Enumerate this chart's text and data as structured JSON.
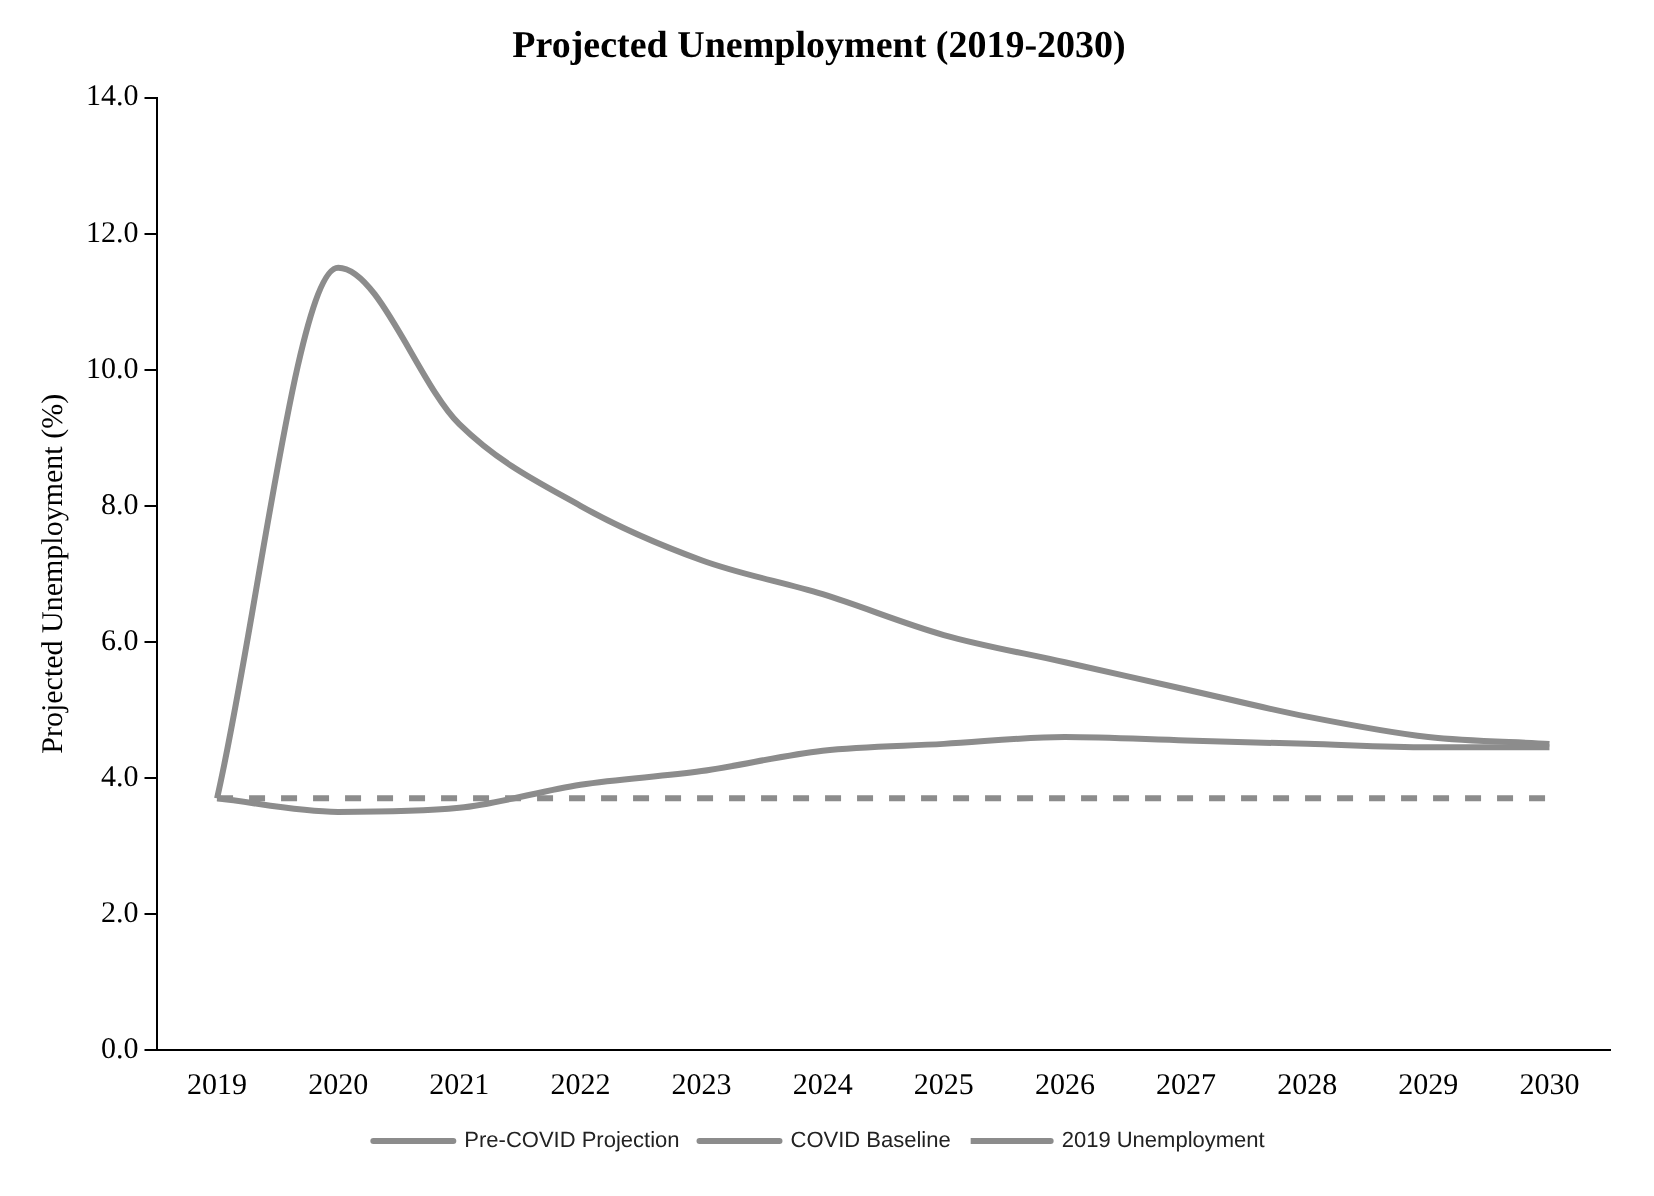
{
  "chart_data": {
    "type": "line",
    "title": "Projected Unemployment (2019-2030)",
    "ylabel": "Projected Unemployment (%)",
    "categories": [
      "2019",
      "2020",
      "2021",
      "2022",
      "2023",
      "2024",
      "2025",
      "2026",
      "2027",
      "2028",
      "2029",
      "2030"
    ],
    "series": [
      {
        "name": "Pre-COVID Projection",
        "color": "#8c8c8c",
        "line_style": "solid",
        "values": [
          3.7,
          3.5,
          3.56,
          3.9,
          4.1,
          4.4,
          4.5,
          4.6,
          4.55,
          4.5,
          4.45,
          4.45
        ]
      },
      {
        "name": "COVID Baseline",
        "color": "#8c8c8c",
        "line_style": "solid",
        "values": [
          3.7,
          11.5,
          9.2,
          8.0,
          7.2,
          6.7,
          6.1,
          5.7,
          5.3,
          4.9,
          4.6,
          4.5
        ]
      },
      {
        "name": "2019 Unemployment",
        "color": "#8c8c8c",
        "line_style": "dashed",
        "values": [
          3.7,
          3.7,
          3.7,
          3.7,
          3.7,
          3.7,
          3.7,
          3.7,
          3.7,
          3.7,
          3.7,
          3.7
        ]
      }
    ],
    "ylim": [
      0,
      14
    ],
    "yticks": [
      {
        "value": 0,
        "label": "0.0"
      },
      {
        "value": 2,
        "label": "2.0"
      },
      {
        "value": 4,
        "label": "4.0"
      },
      {
        "value": 6,
        "label": "6.0"
      },
      {
        "value": 8,
        "label": "8.0"
      },
      {
        "value": 10,
        "label": "10.0"
      },
      {
        "value": 12,
        "label": "12.0"
      },
      {
        "value": 14,
        "label": "14.0"
      }
    ],
    "grid": false,
    "legend": "bottom",
    "marker": "none"
  }
}
